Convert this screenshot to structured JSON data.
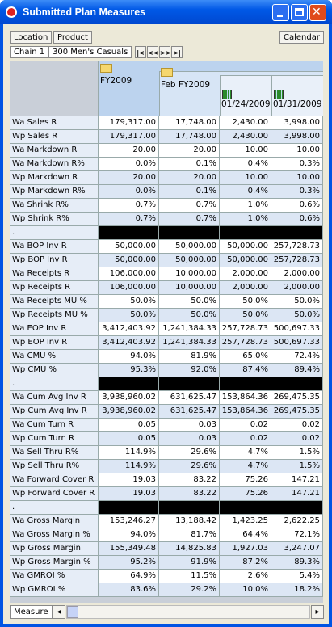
{
  "window": {
    "title": "Submitted Plan Measures"
  },
  "toolbar": {
    "left": [
      "Location",
      "Product"
    ],
    "right": "Calendar"
  },
  "path": [
    "Chain 1",
    "300 Men's Casuals"
  ],
  "columns": [
    "FY2009",
    "Feb FY2009",
    "01/24/2009",
    "01/31/2009"
  ],
  "rows": [
    {
      "label": "Wa Sales R",
      "values": [
        "179,317.00",
        "17,748.00",
        "2,430.00",
        "3,998.00"
      ]
    },
    {
      "label": "Wp Sales R",
      "values": [
        "179,317.00",
        "17,748.00",
        "2,430.00",
        "3,998.00"
      ]
    },
    {
      "label": "Wa Markdown R",
      "values": [
        "20.00",
        "20.00",
        "10.00",
        "10.00"
      ]
    },
    {
      "label": "Wa Markdown R%",
      "values": [
        "0.0%",
        "0.1%",
        "0.4%",
        "0.3%"
      ]
    },
    {
      "label": "Wp Markdown R",
      "values": [
        "20.00",
        "20.00",
        "10.00",
        "10.00"
      ]
    },
    {
      "label": "Wp Markdown R%",
      "values": [
        "0.0%",
        "0.1%",
        "0.4%",
        "0.3%"
      ]
    },
    {
      "label": "Wa Shrink R%",
      "values": [
        "0.7%",
        "0.7%",
        "1.0%",
        "0.6%"
      ]
    },
    {
      "label": "Wp Shrink R%",
      "values": [
        "0.7%",
        "0.7%",
        "1.0%",
        "0.6%"
      ]
    },
    {
      "label": "."
    },
    {
      "label": "Wa BOP Inv R",
      "values": [
        "50,000.00",
        "50,000.00",
        "50,000.00",
        "257,728.73"
      ]
    },
    {
      "label": "Wp BOP Inv R",
      "values": [
        "50,000.00",
        "50,000.00",
        "50,000.00",
        "257,728.73"
      ]
    },
    {
      "label": "Wa Receipts R",
      "values": [
        "106,000.00",
        "10,000.00",
        "2,000.00",
        "2,000.00"
      ]
    },
    {
      "label": "Wp Receipts R",
      "values": [
        "106,000.00",
        "10,000.00",
        "2,000.00",
        "2,000.00"
      ]
    },
    {
      "label": "Wa Receipts MU %",
      "values": [
        "50.0%",
        "50.0%",
        "50.0%",
        "50.0%"
      ]
    },
    {
      "label": "Wp Receipts MU %",
      "values": [
        "50.0%",
        "50.0%",
        "50.0%",
        "50.0%"
      ]
    },
    {
      "label": "Wa EOP Inv R",
      "values": [
        "3,412,403.92",
        "1,241,384.33",
        "257,728.73",
        "500,697.33"
      ]
    },
    {
      "label": "Wp EOP Inv R",
      "values": [
        "3,412,403.92",
        "1,241,384.33",
        "257,728.73",
        "500,697.33"
      ]
    },
    {
      "label": "Wa CMU %",
      "values": [
        "94.0%",
        "81.9%",
        "65.0%",
        "72.4%"
      ]
    },
    {
      "label": "Wp CMU %",
      "values": [
        "95.3%",
        "92.0%",
        "87.4%",
        "89.4%"
      ]
    },
    {
      "label": "."
    },
    {
      "label": "Wa Cum Avg Inv R",
      "values": [
        "3,938,960.02",
        "631,625.47",
        "153,864.36",
        "269,475.35"
      ]
    },
    {
      "label": "Wp Cum Avg Inv R",
      "values": [
        "3,938,960.02",
        "631,625.47",
        "153,864.36",
        "269,475.35"
      ]
    },
    {
      "label": "Wa Cum Turn R",
      "values": [
        "0.05",
        "0.03",
        "0.02",
        "0.02"
      ]
    },
    {
      "label": "Wp Cum Turn R",
      "values": [
        "0.05",
        "0.03",
        "0.02",
        "0.02"
      ]
    },
    {
      "label": "Wa Sell Thru R%",
      "values": [
        "114.9%",
        "29.6%",
        "4.7%",
        "1.5%"
      ]
    },
    {
      "label": "Wp Sell Thru R%",
      "values": [
        "114.9%",
        "29.6%",
        "4.7%",
        "1.5%"
      ]
    },
    {
      "label": "Wa Forward Cover R",
      "values": [
        "19.03",
        "83.22",
        "75.26",
        "147.21"
      ]
    },
    {
      "label": "Wp Forward Cover R",
      "values": [
        "19.03",
        "83.22",
        "75.26",
        "147.21"
      ]
    },
    {
      "label": "."
    },
    {
      "label": "Wa Gross Margin",
      "values": [
        "153,246.27",
        "13,188.42",
        "1,423.25",
        "2,622.25"
      ]
    },
    {
      "label": "Wa Gross Margin %",
      "values": [
        "94.0%",
        "81.7%",
        "64.4%",
        "72.1%"
      ]
    },
    {
      "label": "Wp Gross Margin",
      "values": [
        "155,349.48",
        "14,825.83",
        "1,927.03",
        "3,247.07"
      ]
    },
    {
      "label": "Wp Gross Margin %",
      "values": [
        "95.2%",
        "91.9%",
        "87.2%",
        "89.3%"
      ]
    },
    {
      "label": "Wa GMROI %",
      "values": [
        "64.9%",
        "11.5%",
        "2.6%",
        "5.4%"
      ]
    },
    {
      "label": "Wp GMROI %",
      "values": [
        "83.6%",
        "29.2%",
        "10.0%",
        "18.2%"
      ]
    }
  ],
  "bottom_tab": "Measure"
}
